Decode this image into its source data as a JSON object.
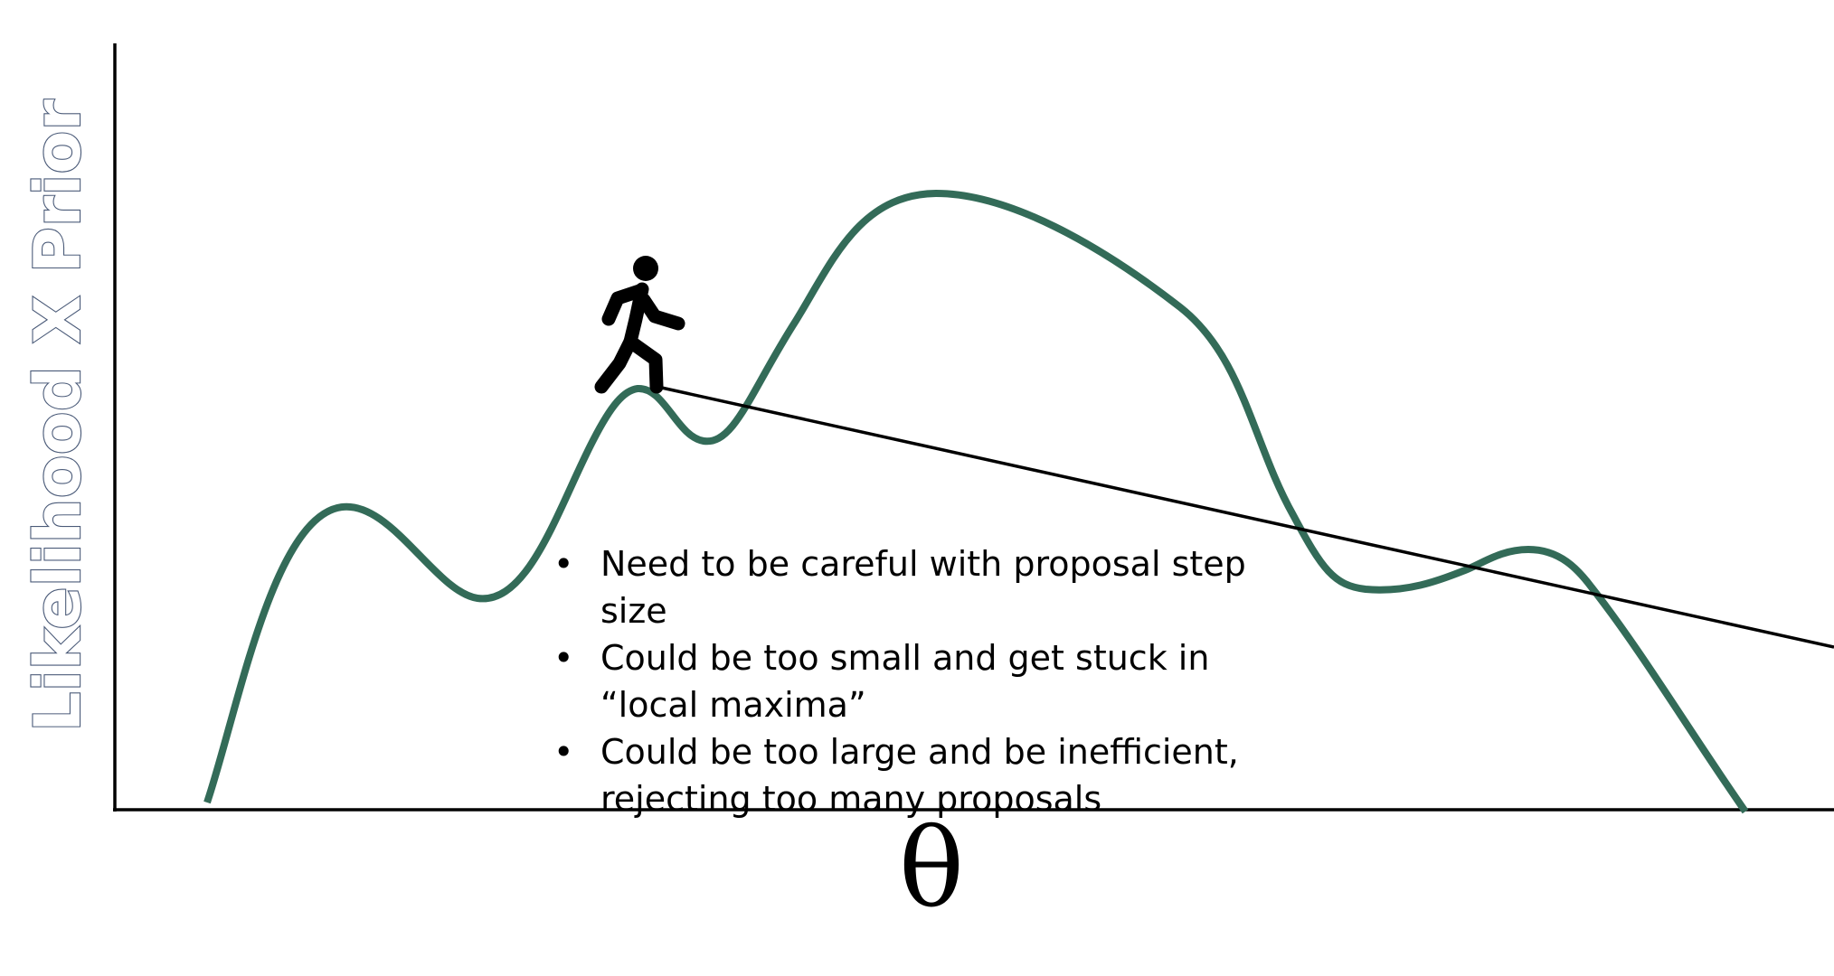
{
  "diagram": {
    "y_axis_label": "Likelihood X Prior",
    "x_axis_label": "θ",
    "curve_color": "#336b58",
    "notes": [
      "Need to be careful with proposal step size",
      "Could be too small and get stuck in “local maxima”",
      "Could be too large and be inefficient, rejecting too many proposals"
    ],
    "icons": [
      "walking-person-icon"
    ]
  }
}
